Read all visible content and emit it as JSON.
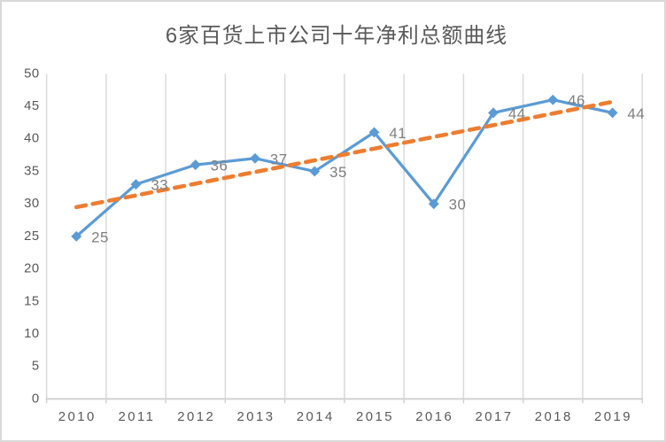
{
  "title": "6家百货上市公司十年净利总额曲线",
  "chart_data": {
    "type": "line",
    "categories": [
      "2010",
      "2011",
      "2012",
      "2013",
      "2014",
      "2015",
      "2016",
      "2017",
      "2018",
      "2019"
    ],
    "values": [
      25,
      33,
      36,
      37,
      35,
      41,
      30,
      44,
      46,
      44
    ],
    "data_labels": [
      "25",
      "33",
      "36",
      "37",
      "35",
      "41",
      "30",
      "44",
      "46",
      "44"
    ],
    "yticks": [
      0,
      5,
      10,
      15,
      20,
      25,
      30,
      35,
      40,
      45,
      50
    ],
    "ylim": [
      0,
      50
    ],
    "xlabel": "",
    "ylabel": "",
    "grid": "vertical-only",
    "legend": "none",
    "marker": "diamond",
    "trendline": {
      "type": "linear",
      "style": "dashed",
      "start_value": 29.5,
      "end_value": 45.8
    }
  },
  "colors": {
    "series_line": "#5B9BD5",
    "marker_fill": "#5B9BD5",
    "trendline": "#ED7D31",
    "gridline": "#D9D9D9",
    "axis_line": "#D2D2D2",
    "axis_label": "#595959",
    "data_label": "#7F7F7F",
    "title": "#595959",
    "background": "#FFFFFF",
    "border": "#D9D9D9"
  }
}
